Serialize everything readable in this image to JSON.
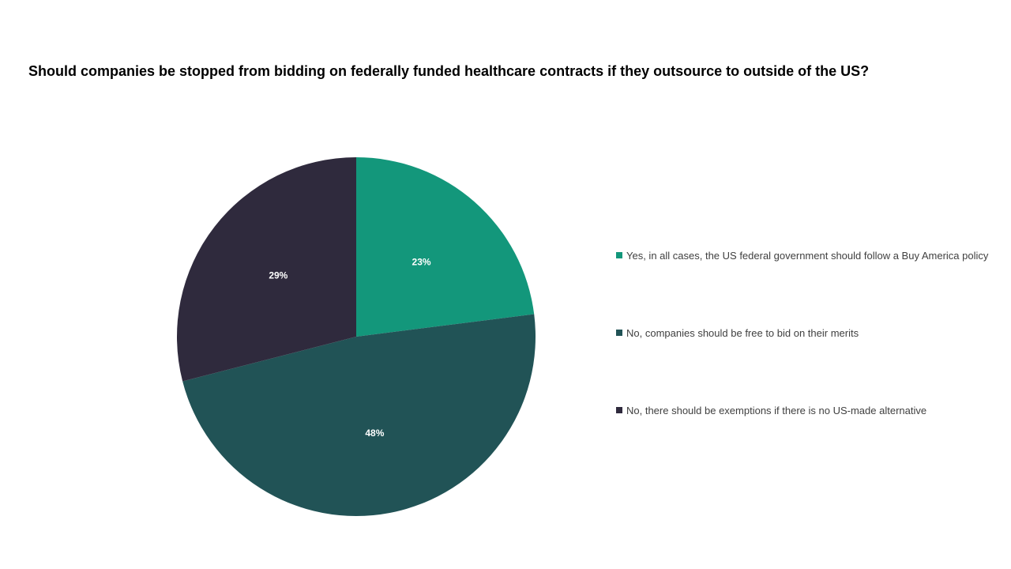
{
  "chart_data": {
    "type": "pie",
    "title": "Should companies be stopped from bidding on federally funded healthcare contracts if they outsource to outside of the US?",
    "slices": [
      {
        "label": "Yes, in all cases, the US federal government should follow a Buy America policy",
        "value": 23,
        "display": "23%",
        "color": "#13977b"
      },
      {
        "label": "No, companies should be free to bid on their merits",
        "value": 48,
        "display": "48%",
        "color": "#215356"
      },
      {
        "label": "No, there should be exemptions if there is no US-made alternative",
        "value": 29,
        "display": "29%",
        "color": "#2f2a3d"
      }
    ],
    "legend_position": "right",
    "label_color": "#ffffff"
  }
}
